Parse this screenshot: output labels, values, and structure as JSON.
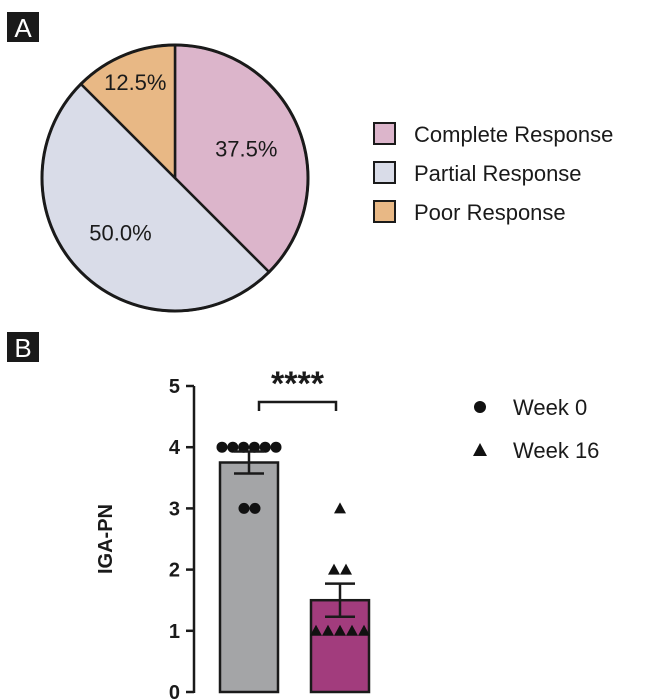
{
  "panel_a": {
    "label": "A"
  },
  "panel_b": {
    "label": "B"
  },
  "chart_data": [
    {
      "type": "pie",
      "slices": [
        {
          "name": "Complete Response",
          "value": 37.5,
          "label": "37.5%",
          "color": "#dcb5cb"
        },
        {
          "name": "Partial Response",
          "value": 50.0,
          "label": "50.0%",
          "color": "#d9dce8"
        },
        {
          "name": "Poor Response",
          "value": 12.5,
          "label": "12.5%",
          "color": "#e8b885"
        }
      ],
      "legend": [
        "Complete Response",
        "Partial Response",
        "Poor Response"
      ],
      "legend_position": "right"
    },
    {
      "type": "bar",
      "categories": [
        "Week 0",
        "Week 16"
      ],
      "values": [
        3.75,
        1.5
      ],
      "error": [
        0.18,
        0.27
      ],
      "bar_colors": [
        "#a4a5a7",
        "#a23c7d"
      ],
      "markers": [
        "circle",
        "triangle"
      ],
      "points": [
        [
          4,
          4,
          4,
          4,
          4,
          4,
          3,
          3
        ],
        [
          3,
          2,
          2,
          1,
          1,
          1,
          1,
          1
        ]
      ],
      "ylabel": "IGA-PN",
      "ylim": [
        0,
        5
      ],
      "yticks": [
        "0",
        "1",
        "2",
        "3",
        "4",
        "5"
      ],
      "significance": "****",
      "legend": [
        "Week 0",
        "Week 16"
      ],
      "legend_position": "right"
    }
  ]
}
